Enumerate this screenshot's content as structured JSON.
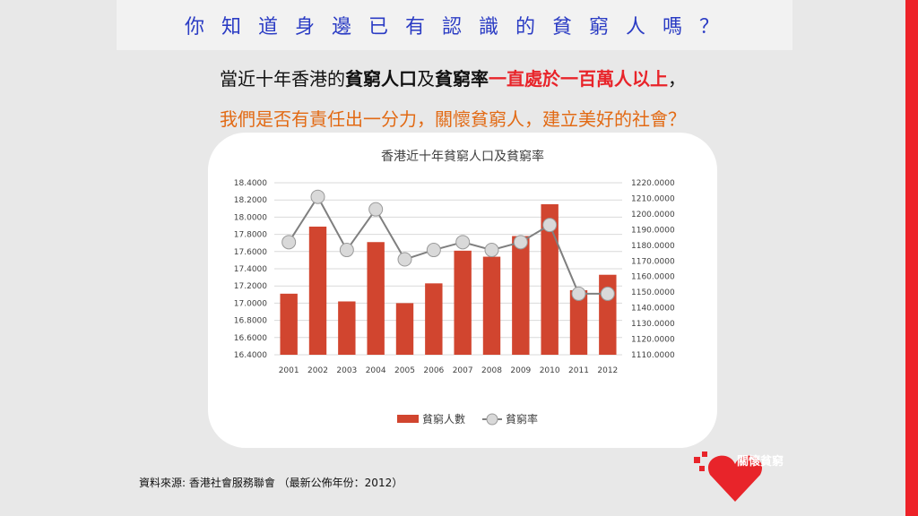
{
  "slide": {
    "title": "你 知 道 身 邊 已 有 認 識 的 貧 窮 人 嗎 ？",
    "line1": {
      "p1": "當近十年香港的",
      "p2": "貧窮人口",
      "p3": "及",
      "p4": "貧窮率",
      "p5": "一直處於一百萬人以上",
      "p6": "，"
    },
    "line2": "我們是否有責任出一分力，關懷貧窮人，建立美好的社會？",
    "source": "資料來源: 香港社會服務聯會 （最新公佈年份：2012）",
    "logo_text": "關懷貧窮"
  },
  "colors": {
    "bar": "#d1452f",
    "line": "#7f7f7f",
    "marker_fill": "#d9d9d9",
    "title": "#2b3cc4",
    "accent_red": "#e8242a",
    "accent_orange": "#e26a14"
  },
  "chart_data": {
    "type": "bar+line",
    "title": "香港近十年貧窮人口及貧窮率",
    "categories": [
      "2001",
      "2002",
      "2003",
      "2004",
      "2005",
      "2006",
      "2007",
      "2008",
      "2009",
      "2010",
      "2011",
      "2012"
    ],
    "series": [
      {
        "name": "貧窮人數",
        "type": "bar",
        "axis": "left",
        "values": [
          17.11,
          17.89,
          17.02,
          17.71,
          17.0,
          17.23,
          17.61,
          17.54,
          17.78,
          18.15,
          17.15,
          17.33
        ]
      },
      {
        "name": "貧窮率",
        "type": "line",
        "axis": "right",
        "values": [
          1182,
          1211,
          1177,
          1203,
          1171,
          1177,
          1182,
          1177,
          1182,
          1193,
          1149,
          1149
        ]
      }
    ],
    "y_left": {
      "min": 16.4,
      "max": 18.4,
      "ticks": [
        "16.4000",
        "16.6000",
        "16.8000",
        "17.0000",
        "17.2000",
        "17.4000",
        "17.6000",
        "17.8000",
        "18.0000",
        "18.2000",
        "18.4000"
      ]
    },
    "y_right": {
      "min": 1110,
      "max": 1220,
      "ticks": [
        "1110.0000",
        "1120.0000",
        "1130.0000",
        "1140.0000",
        "1150.0000",
        "1160.0000",
        "1170.0000",
        "1180.0000",
        "1190.0000",
        "1200.0000",
        "1210.0000",
        "1220.0000"
      ]
    },
    "legend_position": "bottom",
    "grid": true
  }
}
